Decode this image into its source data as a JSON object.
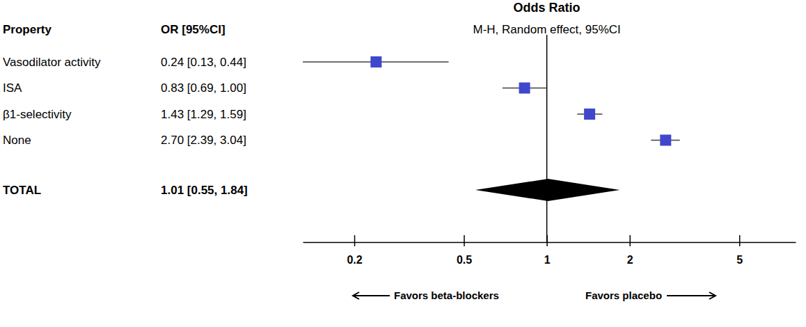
{
  "chart_data": {
    "type": "forest",
    "title": "Odds Ratio",
    "subtitle": "M-H, Random effect, 95%CI",
    "label_header": "Property",
    "value_header": "OR [95%CI]",
    "x_left_label": "Favors beta-blockers",
    "x_right_label": "Favors placebo",
    "log": "x",
    "xlim": [
      0.13,
      8
    ],
    "xticks": [
      0.2,
      0.5,
      1,
      2,
      5
    ],
    "reference": 1,
    "series": [
      {
        "categories": [
          "Vasodilator activity",
          "ISA",
          "β1-selectivity",
          "None"
        ],
        "values": [
          0.24,
          0.83,
          1.43,
          2.7
        ],
        "lower": [
          0.13,
          0.69,
          1.29,
          2.39
        ],
        "upper": [
          0.44,
          1.0,
          1.59,
          3.04
        ],
        "value_labels": [
          "0.24 [0.13, 0.44]",
          "0.83 [0.69, 1.00]",
          "1.43 [1.29, 1.59]",
          "2.70 [2.39, 3.04]"
        ],
        "marker": "square",
        "color": "#3f48cc"
      },
      {
        "categories": [
          "TOTAL"
        ],
        "values": [
          1.01
        ],
        "lower": [
          0.55
        ],
        "upper": [
          1.84
        ],
        "value_labels": [
          "1.01 [0.55, 1.84]"
        ],
        "marker": "diamond",
        "color": "#000000"
      }
    ]
  }
}
